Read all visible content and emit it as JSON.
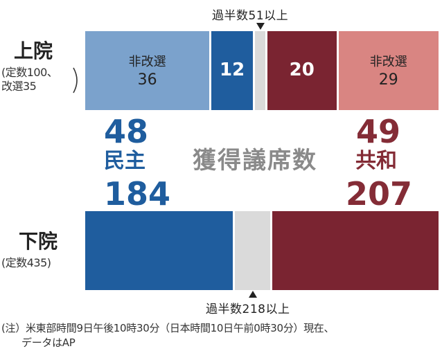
{
  "colors": {
    "dem_light": "#7ba2cc",
    "dem_dark": "#1f5d9e",
    "rep_dark": "#7a2431",
    "rep_light": "#d98582",
    "vacant": "#dadada",
    "dem_text": "#1f5d9e",
    "rep_text": "#842c36",
    "label_white": "#ffffff",
    "label_dark": "#222222"
  },
  "center_label": "獲得議席数",
  "note": {
    "line1": "(注）米東部時間9日午後10時30分（日本時間10日午前0時30分）現在、",
    "line2": "データはAP"
  },
  "chart_data": [
    {
      "type": "bar",
      "orientation": "horizontal-stacked",
      "chamber": "上院",
      "subtitle_line1": "(定数100、",
      "subtitle_line2": "改選35",
      "total": 100,
      "majority_label": "過半数51以上",
      "majority_value": 51,
      "segments": [
        {
          "sub": "非改選",
          "value": 36,
          "color_key": "dem_light"
        },
        {
          "sub": "",
          "value": 12,
          "color_key": "dem_dark"
        },
        {
          "sub": "",
          "value": 3,
          "color_key": "vacant"
        },
        {
          "sub": "",
          "value": 20,
          "color_key": "rep_dark"
        },
        {
          "sub": "非改選",
          "value": 29,
          "color_key": "rep_light"
        }
      ],
      "dem_total": 48,
      "rep_total": 49
    },
    {
      "type": "bar",
      "orientation": "horizontal-stacked",
      "chamber": "下院",
      "subtitle_line1": "(定数435)",
      "subtitle_line2": "",
      "total": 435,
      "majority_label": "過半数218以上",
      "majority_value": 218,
      "segments": [
        {
          "sub": "",
          "value": 184,
          "color_key": "dem_dark"
        },
        {
          "sub": "",
          "value": 44,
          "color_key": "vacant"
        },
        {
          "sub": "",
          "value": 207,
          "color_key": "rep_dark"
        }
      ],
      "dem_total": 184,
      "rep_total": 207
    }
  ],
  "parties": {
    "dem_name": "民主",
    "rep_name": "共和"
  }
}
